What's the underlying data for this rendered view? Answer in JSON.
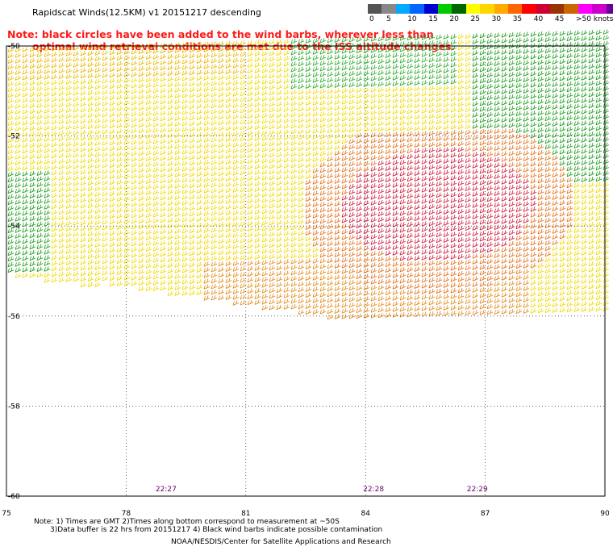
{
  "title": "Rapidscat Winds(12.5KM) v1 20151217 descending",
  "note_lines": [
    "Note: black circles have been added to the wind barbs, wherever less than",
    "optimal wind retrieval conditions are met due to the ISS altitude changes."
  ],
  "color_scale": {
    "labels": [
      "0",
      "5",
      "10",
      "15",
      "20",
      "25",
      "30",
      "35",
      "40",
      "45",
      ">50 knots"
    ],
    "colors": [
      "#555555",
      "#888888",
      "#00aaff",
      "#0066ff",
      "#0000cc",
      "#00cc00",
      "#006600",
      "#ffff00",
      "#ffd700",
      "#ffaa00",
      "#ff6600",
      "#ff0000",
      "#cc0033",
      "#993300",
      "#cc6600",
      "#ff00ff",
      "#cc00cc",
      "#660099",
      "#330066"
    ]
  },
  "map": {
    "lon_range": [
      75,
      90
    ],
    "lat_range": [
      -50,
      -60
    ],
    "lon_ticks": [
      "75",
      "78",
      "81",
      "84",
      "87",
      "90"
    ],
    "lat_ticks": [
      "-50",
      "-52",
      "-54",
      "-56",
      "-58",
      "-60"
    ],
    "time_labels": [
      {
        "text": "22:27",
        "lon": 79
      },
      {
        "text": "22:28",
        "lon": 84.2
      },
      {
        "text": "22:29",
        "lon": 86.8
      }
    ]
  },
  "footer": {
    "line1": "Note: 1) Times are GMT 2)Times along bottom correspond to measurement at ~50S",
    "line2": "3)Data buffer is 22 hrs from 20151217 4) Black wind barbs indicate possible contamination",
    "line3": "NOAA/NESDIS/Center for Satellite Applications and Research"
  }
}
